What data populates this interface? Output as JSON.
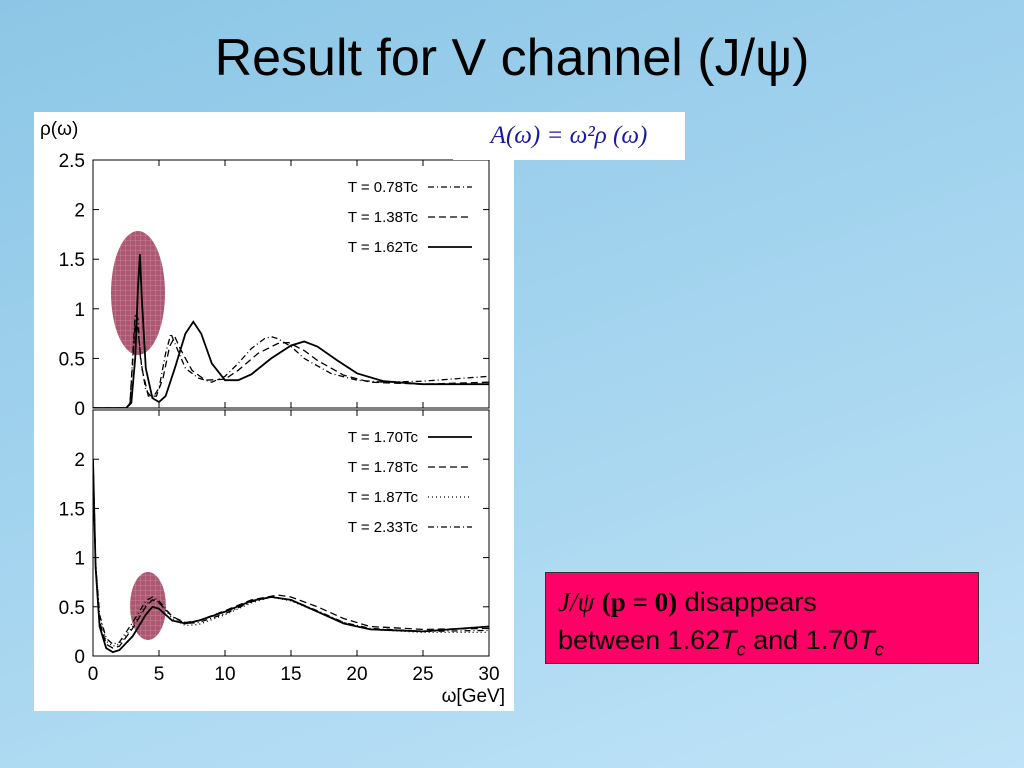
{
  "slide": {
    "title": "Result for V channel (J/ψ)",
    "formula": "A(ω) = ω²ρ (ω)",
    "callout": {
      "line1_psi": "J/ψ",
      "line1_p": "(p = 0)",
      "line1_rest": " disappears",
      "line2_prefix": "between 1.62",
      "line2_T1": "T",
      "line2_c1": "c",
      "line2_mid": " and 1.70",
      "line2_T2": "T",
      "line2_c2": "c"
    },
    "colors": {
      "highlight_ellipse": "#9c3a5a",
      "callout_bg": "#ff0066",
      "formula_text": "#1a1aa0"
    }
  },
  "chart_data": [
    {
      "type": "line",
      "panel": "top",
      "ylabel": "ρ(ω)",
      "xlabel": "",
      "xlim": [
        0,
        30
      ],
      "ylim": [
        0,
        2.5
      ],
      "yticks": [
        "0",
        "0.5",
        "1",
        "1.5",
        "2",
        "2.5"
      ],
      "xticks": [],
      "legend_position": "top-right",
      "series": [
        {
          "name": "T = 0.78Tc",
          "dash": "dashdot",
          "points": [
            [
              0,
              0
            ],
            [
              2.5,
              0
            ],
            [
              2.8,
              0.05
            ],
            [
              3.0,
              0.5
            ],
            [
              3.2,
              0.95
            ],
            [
              3.4,
              0.9
            ],
            [
              3.6,
              0.5
            ],
            [
              4.0,
              0.18
            ],
            [
              4.5,
              0.1
            ],
            [
              5.0,
              0.2
            ],
            [
              5.5,
              0.55
            ],
            [
              5.9,
              0.75
            ],
            [
              6.3,
              0.62
            ],
            [
              7,
              0.4
            ],
            [
              8,
              0.3
            ],
            [
              9,
              0.26
            ],
            [
              10,
              0.32
            ],
            [
              11,
              0.45
            ],
            [
              12,
              0.6
            ],
            [
              13,
              0.7
            ],
            [
              13.5,
              0.72
            ],
            [
              14,
              0.7
            ],
            [
              15,
              0.62
            ],
            [
              16,
              0.5
            ],
            [
              18,
              0.35
            ],
            [
              20,
              0.28
            ],
            [
              22,
              0.26
            ],
            [
              25,
              0.27
            ],
            [
              30,
              0.32
            ]
          ]
        },
        {
          "name": "T = 1.38Tc",
          "dash": "dashed",
          "points": [
            [
              0,
              0
            ],
            [
              2.5,
              0
            ],
            [
              2.8,
              0.05
            ],
            [
              3.0,
              0.45
            ],
            [
              3.2,
              0.85
            ],
            [
              3.4,
              0.8
            ],
            [
              3.7,
              0.4
            ],
            [
              4.2,
              0.12
            ],
            [
              4.8,
              0.12
            ],
            [
              5.3,
              0.3
            ],
            [
              5.8,
              0.62
            ],
            [
              6.2,
              0.72
            ],
            [
              6.6,
              0.6
            ],
            [
              7.5,
              0.38
            ],
            [
              8.5,
              0.28
            ],
            [
              10,
              0.29
            ],
            [
              11,
              0.38
            ],
            [
              12.5,
              0.55
            ],
            [
              14,
              0.65
            ],
            [
              14.8,
              0.66
            ],
            [
              16,
              0.58
            ],
            [
              17,
              0.48
            ],
            [
              19,
              0.33
            ],
            [
              21,
              0.26
            ],
            [
              25,
              0.24
            ],
            [
              30,
              0.26
            ]
          ]
        },
        {
          "name": "T = 1.62Tc",
          "dash": "solid",
          "points": [
            [
              0,
              0
            ],
            [
              2.5,
              0
            ],
            [
              2.9,
              0.05
            ],
            [
              3.2,
              0.5
            ],
            [
              3.4,
              1.2
            ],
            [
              3.55,
              1.55
            ],
            [
              3.7,
              1.1
            ],
            [
              4.0,
              0.4
            ],
            [
              4.5,
              0.1
            ],
            [
              5.0,
              0.06
            ],
            [
              5.5,
              0.12
            ],
            [
              6.2,
              0.4
            ],
            [
              7.0,
              0.75
            ],
            [
              7.6,
              0.87
            ],
            [
              8.2,
              0.75
            ],
            [
              9,
              0.45
            ],
            [
              10,
              0.28
            ],
            [
              11,
              0.28
            ],
            [
              12,
              0.34
            ],
            [
              13.5,
              0.5
            ],
            [
              15,
              0.63
            ],
            [
              16,
              0.67
            ],
            [
              17,
              0.62
            ],
            [
              18.5,
              0.48
            ],
            [
              20,
              0.35
            ],
            [
              22,
              0.27
            ],
            [
              25,
              0.24
            ],
            [
              30,
              0.24
            ]
          ]
        }
      ]
    },
    {
      "type": "line",
      "panel": "bottom",
      "ylabel": "",
      "xlabel": "ω[GeV]",
      "xlim": [
        0,
        30
      ],
      "ylim": [
        0,
        2.5
      ],
      "yticks": [
        "0",
        "0.5",
        "1",
        "1.5",
        "2"
      ],
      "xticks": [
        "0",
        "5",
        "10",
        "15",
        "20",
        "25",
        "30"
      ],
      "legend_position": "top-right",
      "series": [
        {
          "name": "T = 1.70Tc",
          "dash": "solid",
          "points": [
            [
              0,
              2.0
            ],
            [
              0.2,
              0.9
            ],
            [
              0.5,
              0.3
            ],
            [
              1,
              0.08
            ],
            [
              1.5,
              0.04
            ],
            [
              2,
              0.06
            ],
            [
              3,
              0.2
            ],
            [
              4,
              0.42
            ],
            [
              4.5,
              0.5
            ],
            [
              5,
              0.48
            ],
            [
              6,
              0.36
            ],
            [
              7,
              0.33
            ],
            [
              8,
              0.36
            ],
            [
              10,
              0.45
            ],
            [
              12,
              0.56
            ],
            [
              13.5,
              0.6
            ],
            [
              15,
              0.57
            ],
            [
              17,
              0.45
            ],
            [
              19,
              0.33
            ],
            [
              21,
              0.27
            ],
            [
              25,
              0.25
            ],
            [
              30,
              0.3
            ]
          ]
        },
        {
          "name": "T = 1.78Tc",
          "dash": "dashed",
          "points": [
            [
              0,
              2.0
            ],
            [
              0.2,
              0.9
            ],
            [
              0.5,
              0.35
            ],
            [
              1,
              0.12
            ],
            [
              1.5,
              0.08
            ],
            [
              2,
              0.1
            ],
            [
              3,
              0.28
            ],
            [
              4,
              0.5
            ],
            [
              4.5,
              0.57
            ],
            [
              5,
              0.54
            ],
            [
              6,
              0.4
            ],
            [
              7,
              0.34
            ],
            [
              8,
              0.36
            ],
            [
              10,
              0.46
            ],
            [
              12,
              0.57
            ],
            [
              14,
              0.62
            ],
            [
              15,
              0.6
            ],
            [
              17,
              0.5
            ],
            [
              19,
              0.38
            ],
            [
              21,
              0.3
            ],
            [
              25,
              0.27
            ],
            [
              30,
              0.28
            ]
          ]
        },
        {
          "name": "T = 1.87Tc",
          "dash": "dotted",
          "points": [
            [
              0,
              2.0
            ],
            [
              0.2,
              0.95
            ],
            [
              0.5,
              0.4
            ],
            [
              1,
              0.15
            ],
            [
              1.5,
              0.1
            ],
            [
              2,
              0.12
            ],
            [
              3,
              0.3
            ],
            [
              4,
              0.52
            ],
            [
              4.5,
              0.58
            ],
            [
              5,
              0.55
            ],
            [
              6,
              0.38
            ],
            [
              7,
              0.31
            ],
            [
              8,
              0.32
            ],
            [
              10,
              0.42
            ],
            [
              12,
              0.54
            ],
            [
              13.5,
              0.6
            ],
            [
              15,
              0.56
            ],
            [
              17,
              0.45
            ],
            [
              19,
              0.34
            ],
            [
              21,
              0.27
            ],
            [
              25,
              0.24
            ],
            [
              30,
              0.24
            ]
          ]
        },
        {
          "name": "T = 2.33Tc",
          "dash": "dashdot",
          "points": [
            [
              0,
              2.0
            ],
            [
              0.2,
              0.95
            ],
            [
              0.5,
              0.42
            ],
            [
              1,
              0.18
            ],
            [
              1.5,
              0.12
            ],
            [
              2,
              0.14
            ],
            [
              3,
              0.34
            ],
            [
              4,
              0.56
            ],
            [
              4.5,
              0.6
            ],
            [
              5,
              0.56
            ],
            [
              6,
              0.4
            ],
            [
              7,
              0.33
            ],
            [
              8,
              0.34
            ],
            [
              10,
              0.43
            ],
            [
              12,
              0.55
            ],
            [
              13.5,
              0.6
            ],
            [
              15,
              0.57
            ],
            [
              17,
              0.46
            ],
            [
              19,
              0.34
            ],
            [
              21,
              0.28
            ],
            [
              25,
              0.25
            ],
            [
              30,
              0.26
            ]
          ]
        }
      ]
    }
  ]
}
